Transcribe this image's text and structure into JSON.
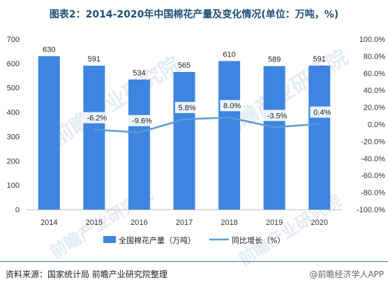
{
  "title": "图表2：2014-2020年中国棉花产量及变化情况(单位：万吨，%)",
  "chart_data": {
    "type": "bar",
    "categories": [
      "2014",
      "2015",
      "2016",
      "2017",
      "2018",
      "2019",
      "2020"
    ],
    "series": [
      {
        "name": "全国棉花产量（万吨）",
        "type": "bar",
        "axis": "left",
        "values": [
          630,
          591,
          534,
          565,
          610,
          589,
          591
        ],
        "color": "#3d85e0"
      },
      {
        "name": "同比增长（%）",
        "type": "line",
        "axis": "right",
        "values": [
          null,
          -6.2,
          -9.6,
          5.8,
          8.0,
          -3.5,
          0.4
        ],
        "color": "#5b9bd5"
      }
    ],
    "bar_labels": [
      "630",
      "591",
      "534",
      "565",
      "610",
      "589",
      "591"
    ],
    "line_labels": [
      "",
      "-6.2%",
      "-9.6%",
      "5.8%",
      "8.0%",
      "-3.5%",
      "0.4%"
    ],
    "y_left": {
      "min": 0,
      "max": 700,
      "ticks": [
        "0",
        "100",
        "200",
        "300",
        "400",
        "500",
        "600",
        "700"
      ]
    },
    "y_right": {
      "min": -100,
      "max": 100,
      "ticks": [
        "-100.0%",
        "-80.0%",
        "-60.0%",
        "-40.0%",
        "-20.0%",
        "0.0%",
        "20.0%",
        "40.0%",
        "60.0%",
        "80.0%",
        "100.0%"
      ]
    },
    "legend_position": "bottom",
    "grid": false
  },
  "source": "资料来源：国家统计局 前瞻产业研究院整理",
  "brand": "@前瞻经济学人APP",
  "watermark": "前瞻产业研究院"
}
